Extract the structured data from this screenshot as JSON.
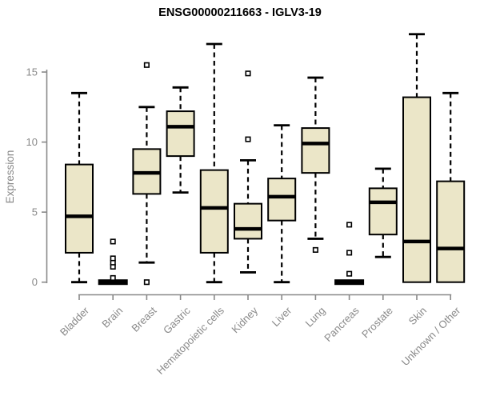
{
  "chart_data": {
    "type": "boxplot",
    "title": "ENSG00000211663 - IGLV3-19",
    "ylabel": "Expression",
    "xlabel": "",
    "ylim": [
      0,
      17.8
    ],
    "yticks": [
      0,
      5,
      10,
      15
    ],
    "grid": false,
    "legend": "none",
    "categories": [
      "Bladder",
      "Brain",
      "Breast",
      "Gastric",
      "Hematopoietic cells",
      "Kidney",
      "Liver",
      "Lung",
      "Pancreas",
      "Prostate",
      "Skin",
      "Unknown / Other"
    ],
    "boxes": [
      {
        "category": "Bladder",
        "whisker_low": 0.0,
        "q1": 2.1,
        "median": 4.7,
        "q3": 8.4,
        "whisker_high": 13.5,
        "outliers": []
      },
      {
        "category": "Brain",
        "whisker_low": 0.0,
        "q1": 0.0,
        "median": 0.0,
        "q3": 0.0,
        "whisker_high": 0.0,
        "outliers": [
          0.3,
          1.1,
          1.4,
          1.7,
          2.9
        ]
      },
      {
        "category": "Breast",
        "whisker_low": 1.4,
        "q1": 6.3,
        "median": 7.8,
        "q3": 9.5,
        "whisker_high": 12.5,
        "outliers": [
          0.0,
          15.5
        ]
      },
      {
        "category": "Gastric",
        "whisker_low": 6.4,
        "q1": 9.0,
        "median": 11.1,
        "q3": 12.2,
        "whisker_high": 13.9,
        "outliers": []
      },
      {
        "category": "Hematopoietic cells",
        "whisker_low": 0.0,
        "q1": 2.1,
        "median": 5.3,
        "q3": 8.0,
        "whisker_high": 17.0,
        "outliers": []
      },
      {
        "category": "Kidney",
        "whisker_low": 0.7,
        "q1": 3.1,
        "median": 3.8,
        "q3": 5.6,
        "whisker_high": 8.7,
        "outliers": [
          10.2,
          14.9
        ]
      },
      {
        "category": "Liver",
        "whisker_low": 0.0,
        "q1": 4.4,
        "median": 6.1,
        "q3": 7.4,
        "whisker_high": 11.2,
        "outliers": []
      },
      {
        "category": "Lung",
        "whisker_low": 3.1,
        "q1": 7.8,
        "median": 9.9,
        "q3": 11.0,
        "whisker_high": 14.6,
        "outliers": [
          2.3
        ]
      },
      {
        "category": "Pancreas",
        "whisker_low": 0.0,
        "q1": 0.0,
        "median": 0.0,
        "q3": 0.0,
        "whisker_high": 0.0,
        "outliers": [
          0.6,
          2.1,
          4.1
        ]
      },
      {
        "category": "Prostate",
        "whisker_low": 1.8,
        "q1": 3.4,
        "median": 5.7,
        "q3": 6.7,
        "whisker_high": 8.1,
        "outliers": []
      },
      {
        "category": "Skin",
        "whisker_low": 0.0,
        "q1": 0.0,
        "median": 2.9,
        "q3": 13.2,
        "whisker_high": 17.7,
        "outliers": []
      },
      {
        "category": "Unknown / Other",
        "whisker_low": 0.0,
        "q1": 0.0,
        "median": 2.4,
        "q3": 7.2,
        "whisker_high": 13.5,
        "outliers": []
      }
    ],
    "colors": {
      "box_fill": "#EBE6C8",
      "box_border": "#000000",
      "median": "#000000",
      "whisker": "#000000",
      "outlier_stroke": "#000000",
      "outlier_fill": "#ffffff",
      "axis": "#898989",
      "tick_label": "#898989",
      "title": "#000000"
    }
  }
}
